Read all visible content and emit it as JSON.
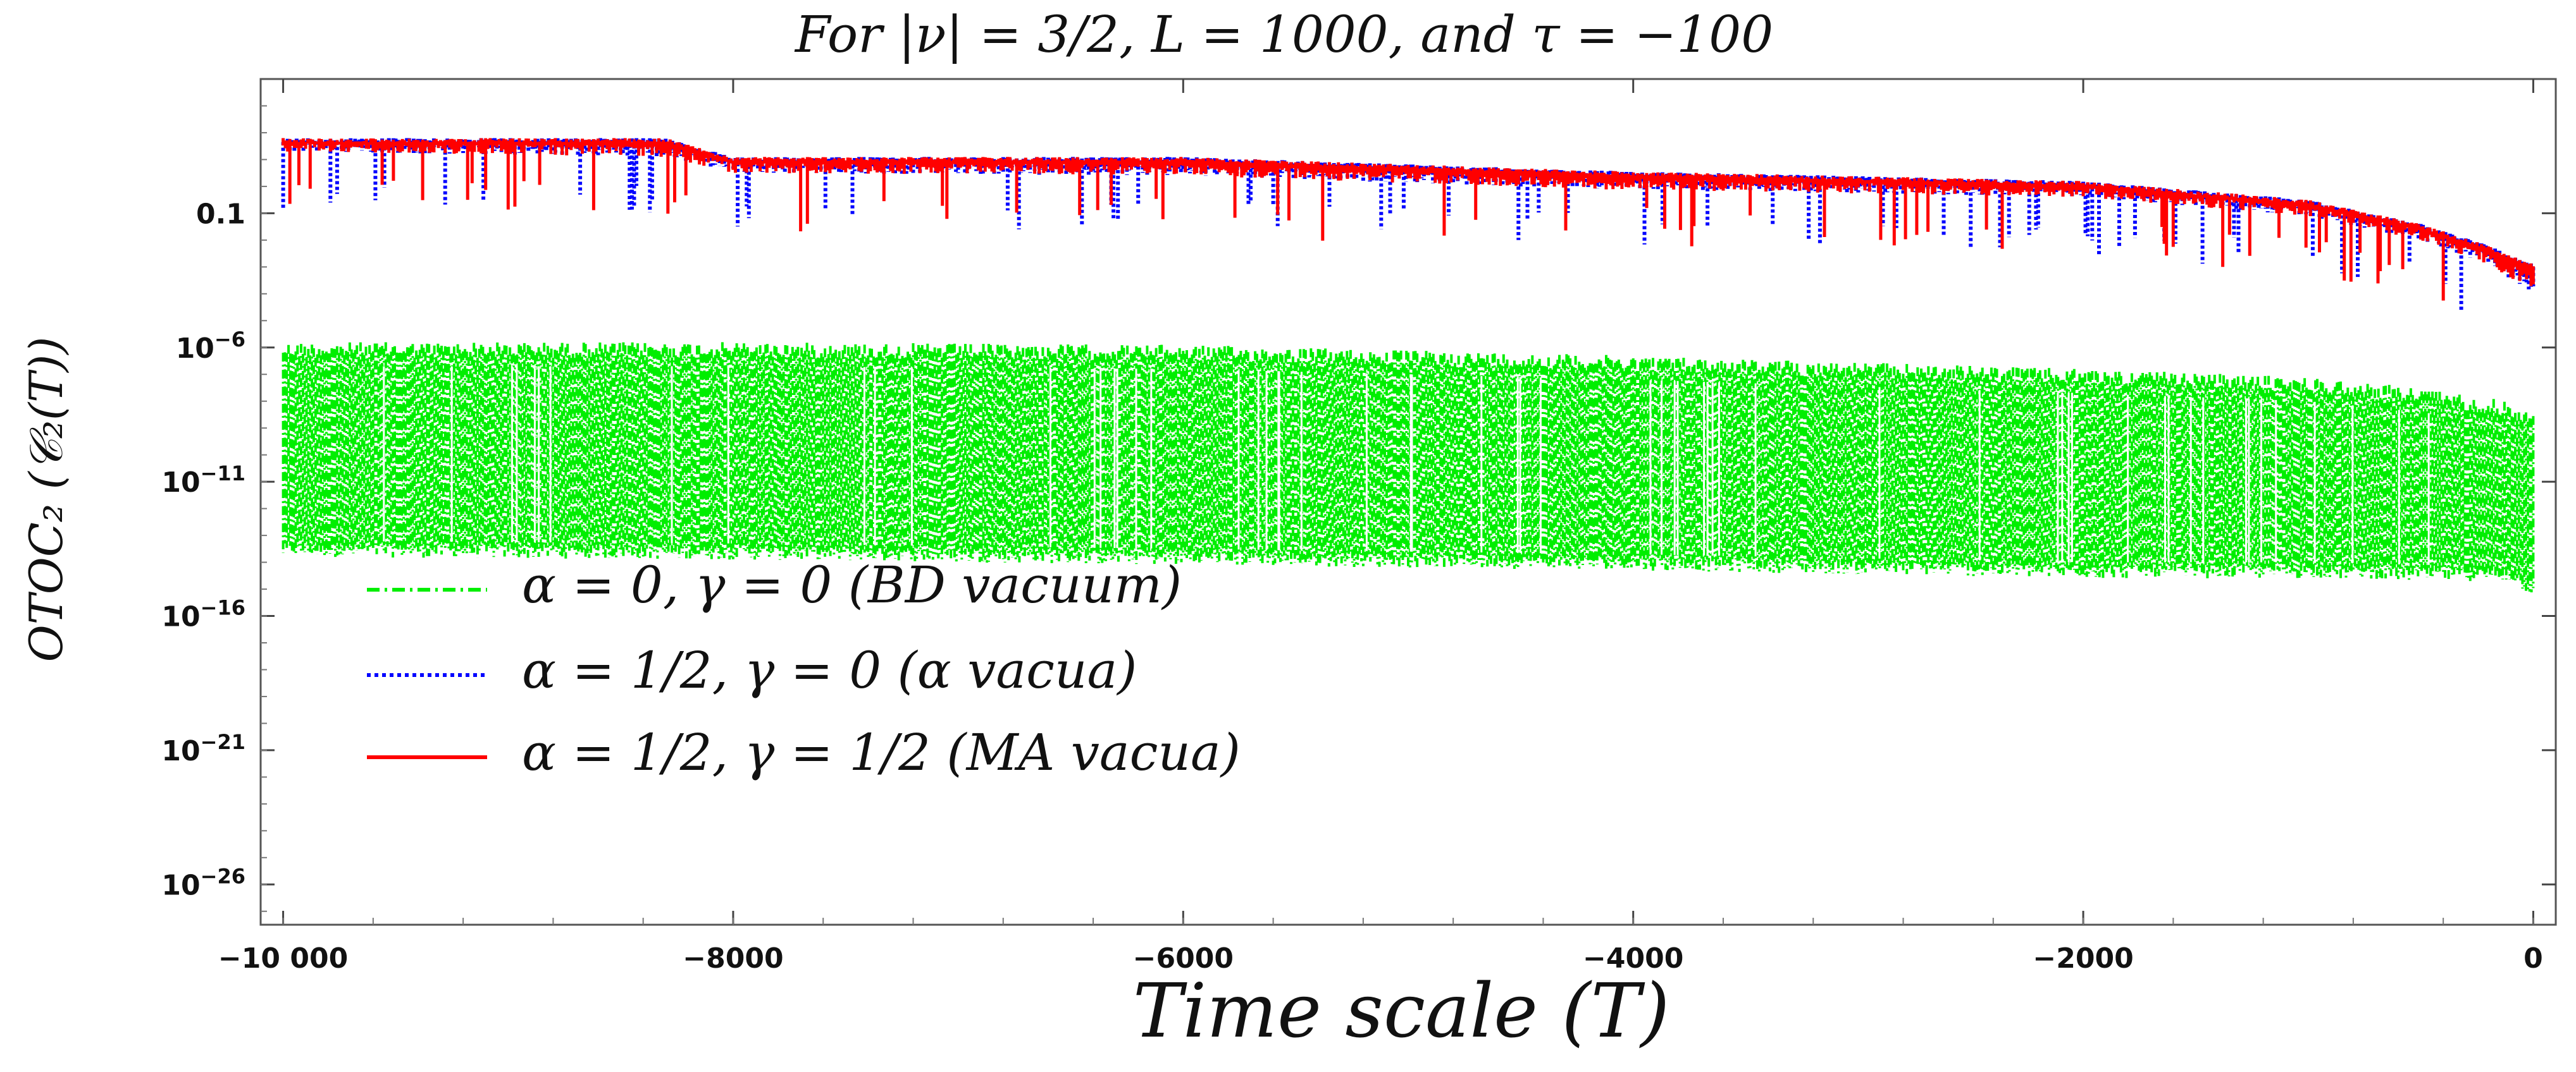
{
  "chart_data": {
    "type": "line",
    "title": "For |ν| = 3/2,  L = 1000,  and τ = −100",
    "xlabel": "Time scale  (T)",
    "ylabel": "OTOC₂ (𝒞₂(T))",
    "xlim": [
      -10100,
      100
    ],
    "ylim_log10": [
      -27.5,
      4.0
    ],
    "y_scale": "log",
    "grid": false,
    "legend_position": "middle-left",
    "x_ticks": [
      {
        "value": -10000,
        "label": "−10 000"
      },
      {
        "value": -8000,
        "label": "−8000"
      },
      {
        "value": -6000,
        "label": "−6000"
      },
      {
        "value": -4000,
        "label": "−4000"
      },
      {
        "value": -2000,
        "label": "−2000"
      },
      {
        "value": 0,
        "label": "0"
      }
    ],
    "y_ticks": [
      {
        "log10": -1,
        "base": "0.1",
        "exp": ""
      },
      {
        "log10": -6,
        "base": "10",
        "exp": "−6"
      },
      {
        "log10": -11,
        "base": "10",
        "exp": "−11"
      },
      {
        "log10": -16,
        "base": "10",
        "exp": "−16"
      },
      {
        "log10": -21,
        "base": "10",
        "exp": "−21"
      },
      {
        "log10": -26,
        "base": "10",
        "exp": "−26"
      }
    ],
    "series": [
      {
        "name": "α = 0, γ = 0 (BD vacuum)",
        "color": "#00ee00",
        "style": "dash-dot",
        "kind": "oscillating-band",
        "x": [
          -10000,
          -8000,
          -6000,
          -4000,
          -2000,
          -1000,
          -500,
          -100,
          0
        ],
        "upper_log10": [
          -5.8,
          -5.8,
          -5.9,
          -6.3,
          -6.8,
          -7.1,
          -7.5,
          -8.0,
          -8.5
        ],
        "lower_log10": [
          -13.8,
          -13.9,
          -14.1,
          -14.3,
          -14.6,
          -14.6,
          -14.7,
          -14.7,
          -15.3
        ]
      },
      {
        "name": "α = 1/2, γ = 0 (α vacua)",
        "color": "#0000ff",
        "style": "dotted",
        "kind": "oscillating-band",
        "x": [
          -10000,
          -8300,
          -8000,
          -6000,
          -4200,
          -2000,
          -1000,
          -500,
          -200,
          0
        ],
        "upper_log10": [
          1.8,
          1.8,
          1.1,
          1.1,
          0.6,
          0.2,
          -0.5,
          -1.4,
          -2.2,
          -2.9
        ],
        "lower_log10": [
          1.3,
          1.1,
          0.5,
          0.4,
          -0.1,
          -0.4,
          -1.1,
          -2.0,
          -2.9,
          -4.0
        ]
      },
      {
        "name": "α = 1/2, γ = 1/2 (MA vacua)",
        "color": "#ff0000",
        "style": "solid",
        "kind": "oscillating-band",
        "x": [
          -10000,
          -8300,
          -8000,
          -6000,
          -4200,
          -2000,
          -1000,
          -500,
          -200,
          0
        ],
        "upper_log10": [
          1.8,
          1.8,
          1.1,
          1.1,
          0.6,
          0.2,
          -0.5,
          -1.4,
          -2.2,
          -2.9
        ],
        "lower_log10": [
          1.3,
          1.1,
          0.5,
          0.4,
          -0.1,
          -0.4,
          -1.1,
          -2.0,
          -2.9,
          -4.0
        ]
      }
    ]
  }
}
